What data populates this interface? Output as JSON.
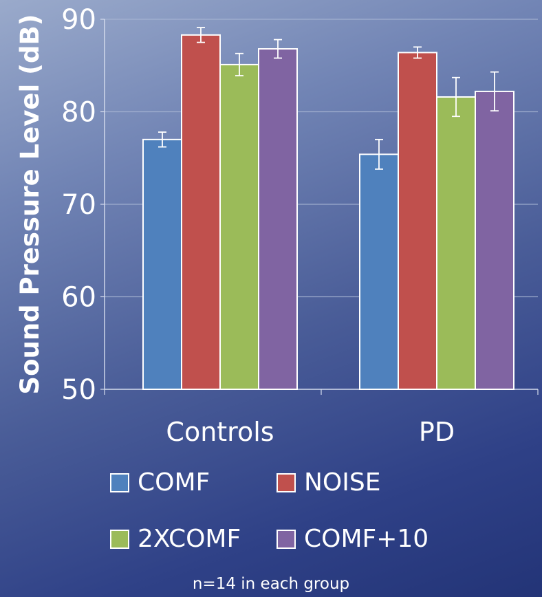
{
  "chart_data": {
    "type": "bar",
    "categories": [
      "Controls",
      "PD"
    ],
    "series": [
      {
        "name": "COMF",
        "color": "#4f81bd",
        "values": [
          77.0,
          75.4
        ],
        "errors": [
          0.8,
          1.6
        ]
      },
      {
        "name": "NOISE",
        "color": "#c0504d",
        "values": [
          88.3,
          86.4
        ],
        "errors": [
          0.8,
          0.6
        ]
      },
      {
        "name": "2XCOMF",
        "color": "#9bbb59",
        "values": [
          85.1,
          81.6
        ],
        "errors": [
          1.2,
          2.1
        ]
      },
      {
        "name": "COMF+10",
        "color": "#8064a2",
        "values": [
          86.8,
          82.2
        ],
        "errors": [
          1.0,
          2.1
        ]
      }
    ],
    "ylabel": "Sound Pressure Level (dB)",
    "xlabel": "",
    "ylim": [
      50,
      90
    ],
    "yticks": [
      "50",
      "60",
      "70",
      "80",
      "90"
    ],
    "grid": true,
    "legend_position": "bottom",
    "note": "n=14 in each group"
  }
}
